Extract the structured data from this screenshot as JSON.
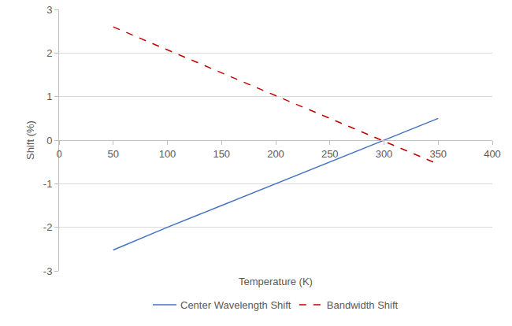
{
  "chart_data": {
    "type": "line",
    "xlabel": "Temperature (K)",
    "ylabel": "Shift (%)",
    "xlim": [
      0,
      400
    ],
    "xticks": [
      0,
      50,
      100,
      150,
      200,
      250,
      300,
      350,
      400
    ],
    "ylim": [
      -3,
      3
    ],
    "yticks": [
      -3,
      -2,
      -1,
      0,
      1,
      2,
      3
    ],
    "grid": true,
    "legend": "bottom",
    "x": [
      50,
      100,
      150,
      200,
      250,
      300,
      350
    ],
    "series": [
      {
        "name": "Center Wavelength Shift",
        "color": "#4472c4",
        "line_style": "solid",
        "values": [
          -2.52,
          -2.0,
          -1.5,
          -1.0,
          -0.5,
          0.0,
          0.5
        ]
      },
      {
        "name": "Bandwidth Shift",
        "color": "#c00000",
        "line_style": "dash",
        "values": [
          2.6,
          2.07,
          1.55,
          1.02,
          0.5,
          -0.02,
          -0.55
        ]
      }
    ]
  }
}
